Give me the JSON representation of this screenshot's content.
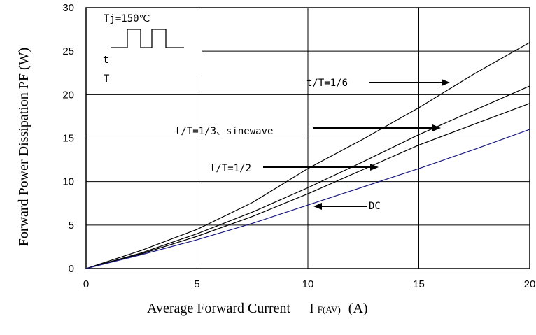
{
  "chart_data": {
    "type": "line",
    "xlabel": "Average Forward Current",
    "xlabel_symbol": "I",
    "xlabel_subscript": "F(AV)",
    "xlabel_unit": "(A)",
    "ylabel": "Forward Power Dissipation PF (W)",
    "xlim": [
      0,
      20
    ],
    "ylim": [
      0,
      30
    ],
    "x_ticks": [
      0,
      5,
      10,
      15,
      20
    ],
    "y_ticks": [
      0,
      5,
      10,
      15,
      20,
      25,
      30
    ],
    "grid": true,
    "inset": {
      "label": "Tj=150℃",
      "t_label": "t",
      "T_label": "T"
    },
    "series": [
      {
        "name": "t/T=1/6",
        "color": "#000000",
        "x": [
          0,
          2.5,
          5,
          7.5,
          10,
          12.5,
          15,
          17.5,
          20
        ],
        "y": [
          0,
          2.1,
          4.5,
          7.6,
          11.5,
          14.9,
          18.5,
          22.4,
          26
        ]
      },
      {
        "name": "t/T=1/3、sinewave",
        "color": "#000000",
        "x": [
          0,
          2.5,
          5,
          7.5,
          10,
          12.5,
          15,
          17.5,
          20
        ],
        "y": [
          0,
          1.8,
          4,
          6.5,
          9.3,
          12.3,
          15.4,
          18.2,
          21
        ]
      },
      {
        "name": "t/T=1/2",
        "color": "#000000",
        "x": [
          0,
          2.5,
          5,
          7.5,
          10,
          12.5,
          15,
          17.5,
          20
        ],
        "y": [
          0,
          1.7,
          3.7,
          6,
          8.6,
          11.4,
          14.2,
          16.6,
          19
        ]
      },
      {
        "name": "DC",
        "color": "#1a1a80",
        "x": [
          0,
          2.5,
          5,
          7.5,
          10,
          12.5,
          15,
          17.5,
          20
        ],
        "y": [
          0,
          1.6,
          3.3,
          5.2,
          7.3,
          9.4,
          11.5,
          13.7,
          16
        ]
      }
    ],
    "annotations": [
      {
        "text": "t/T=1/6"
      },
      {
        "text": "t/T=1/3、sinewave"
      },
      {
        "text": "t/T=1/2"
      },
      {
        "text": "DC"
      }
    ]
  }
}
